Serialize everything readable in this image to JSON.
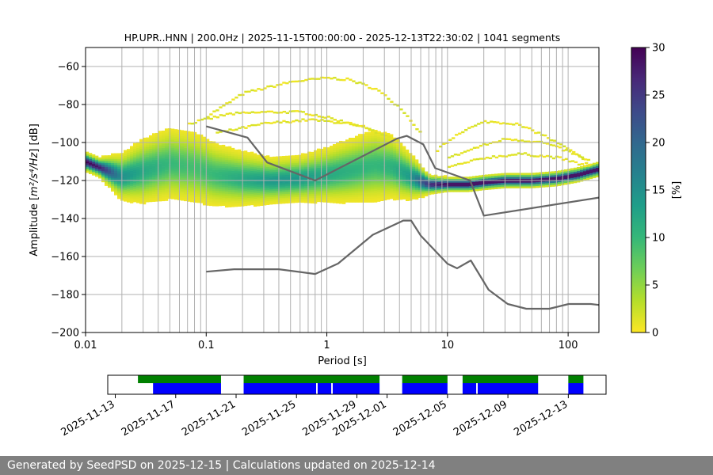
{
  "chart_data": [
    {
      "type": "heatmap",
      "subtype": "probabilistic-power-spectral-density",
      "title": "HP.UPR..HNN | 200.0Hz | 2025-11-15T00:00:00 - 2025-12-13T22:30:02 | 1041 segments",
      "xlabel": "Period [s]",
      "ylabel_text": "Amplitude [",
      "ylabel_unit": "m²/s⁴/Hz",
      "ylabel_tail": "] [dB]",
      "x_scale": "log",
      "xlim": [
        0.01,
        180
      ],
      "ylim": [
        -200,
        -50
      ],
      "x_ticks": [
        {
          "value": 0.01,
          "label": "0.01"
        },
        {
          "value": 0.1,
          "label": "0.1"
        },
        {
          "value": 1,
          "label": "1"
        },
        {
          "value": 10,
          "label": "10"
        },
        {
          "value": 100,
          "label": "100"
        }
      ],
      "y_ticks": [
        {
          "value": -60,
          "label": "−60"
        },
        {
          "value": -80,
          "label": "−80"
        },
        {
          "value": -100,
          "label": "−100"
        },
        {
          "value": -120,
          "label": "−120"
        },
        {
          "value": -140,
          "label": "−140"
        },
        {
          "value": -160,
          "label": "−160"
        },
        {
          "value": -180,
          "label": "−180"
        },
        {
          "value": -200,
          "label": "−200"
        }
      ],
      "grid": true,
      "colorbar": {
        "label": "[%]",
        "range": [
          0,
          30
        ],
        "ticks": [
          {
            "value": 0,
            "label": "0"
          },
          {
            "value": 5,
            "label": "5"
          },
          {
            "value": 10,
            "label": "10"
          },
          {
            "value": 15,
            "label": "15"
          },
          {
            "value": 20,
            "label": "20"
          },
          {
            "value": 25,
            "label": "25"
          },
          {
            "value": 30,
            "label": "30"
          }
        ],
        "colormap_stops": [
          "#fde725",
          "#b5de2b",
          "#6ece58",
          "#35b779",
          "#1f9e89",
          "#26828e",
          "#31688e",
          "#3e4989",
          "#482878",
          "#440154"
        ]
      },
      "series": [
        {
          "name": "new-high-noise-model",
          "color": "#666666",
          "x": [
            0.1,
            0.22,
            0.32,
            0.8,
            3.8,
            4.6,
            6.3,
            7.9,
            15.4,
            20,
            180
          ],
          "y": [
            -91.5,
            -97.4,
            -110.5,
            -120,
            -98,
            -96.5,
            -101,
            -113.5,
            -120,
            -138.5,
            -129
          ]
        },
        {
          "name": "new-low-noise-model",
          "color": "#666666",
          "x": [
            0.1,
            0.17,
            0.4,
            0.8,
            1.24,
            2.4,
            4.3,
            5.0,
            6.0,
            10,
            12,
            15.6,
            21.9,
            31.6,
            45,
            70,
            101,
            154,
            180
          ],
          "y": [
            -168,
            -166.7,
            -166.7,
            -169.2,
            -163.7,
            -148.6,
            -141.1,
            -141.1,
            -149,
            -163.8,
            -166.2,
            -162.1,
            -177.5,
            -185,
            -187.5,
            -187.5,
            -185,
            -185,
            -185.5
          ]
        }
      ],
      "density_band": {
        "description": "PPSD probability density (% occurrence), mode curve with spread",
        "mode_x": [
          0.01,
          0.013,
          0.02,
          0.03,
          0.05,
          0.08,
          0.12,
          0.2,
          0.35,
          0.6,
          1.0,
          1.5,
          2.5,
          3.5,
          5,
          7,
          10,
          15,
          20,
          30,
          50,
          80,
          120,
          180
        ],
        "mode_y": [
          -110,
          -113,
          -118,
          -115,
          -111,
          -113,
          -117,
          -119,
          -120,
          -119,
          -117,
          -115,
          -112,
          -113,
          -118,
          -122,
          -122,
          -122,
          -121,
          -120,
          -120,
          -119,
          -117,
          -114
        ],
        "peak_percent": [
          30,
          28,
          15,
          12,
          10,
          9,
          10,
          12,
          14,
          14,
          12,
          11,
          10,
          11,
          14,
          26,
          30,
          30,
          30,
          30,
          30,
          30,
          30,
          30
        ],
        "spread_db": [
          2,
          2,
          5,
          7,
          8,
          8,
          7,
          6,
          5,
          5,
          6,
          7,
          8,
          7,
          5,
          2,
          1.5,
          1.5,
          1.5,
          1.5,
          1.5,
          1.5,
          1.5,
          1.5
        ]
      },
      "sparse_outliers": {
        "description": "low-probability upper arcs",
        "arcs": [
          {
            "x": [
              0.1,
              0.2,
              0.5,
              1.0,
              1.5,
              2.5,
              4,
              6
            ],
            "y": [
              -86,
              -74,
              -68,
              -66,
              -67,
              -72,
              -82,
              -96
            ]
          },
          {
            "x": [
              0.07,
              0.15,
              0.3,
              0.6,
              1.0,
              2.0,
              4
            ],
            "y": [
              -90,
              -85,
              -84,
              -84,
              -87,
              -92,
              -100
            ]
          },
          {
            "x": [
              0.12,
              0.3,
              0.7,
              1.5,
              3
            ],
            "y": [
              -95,
              -90,
              -88,
              -90,
              -96
            ]
          },
          {
            "x": [
              8,
              12,
              20,
              35,
              60,
              100,
              150
            ],
            "y": [
              -104,
              -95,
              -89,
              -90,
              -96,
              -104,
              -112
            ]
          },
          {
            "x": [
              10,
              18,
              30,
              60,
              100,
              150
            ],
            "y": [
              -108,
              -102,
              -98,
              -100,
              -105,
              -110
            ]
          },
          {
            "x": [
              10,
              20,
              40,
              80,
              150
            ],
            "y": [
              -113,
              -108,
              -106,
              -108,
              -113
            ]
          }
        ]
      }
    },
    {
      "type": "timeline",
      "x_ticks": [
        {
          "value": "2025-11-13",
          "label": "2025-11-13"
        },
        {
          "value": "2025-11-17",
          "label": "2025-11-17"
        },
        {
          "value": "2025-11-21",
          "label": "2025-11-21"
        },
        {
          "value": "2025-11-25",
          "label": "2025-11-25"
        },
        {
          "value": "2025-11-29",
          "label": "2025-11-29"
        },
        {
          "value": "2025-12-01",
          "label": "2025-12-01"
        },
        {
          "value": "2025-12-05",
          "label": "2025-12-05"
        },
        {
          "value": "2025-12-09",
          "label": "2025-12-09"
        },
        {
          "value": "2025-12-13",
          "label": "2025-12-13"
        }
      ],
      "xlim_days": [
        -0.5,
        32.5
      ],
      "origin_date": "2025-11-13",
      "green_color": "#008000",
      "blue_color": "#0000ff",
      "green_segments": [
        [
          1.5,
          7.0
        ],
        [
          8.5,
          17.5
        ],
        [
          19.0,
          22.0
        ],
        [
          23.0,
          28.0
        ],
        [
          30.0,
          31.0
        ]
      ],
      "blue_segments": [
        [
          2.5,
          7.0
        ],
        [
          8.5,
          13.3
        ],
        [
          13.4,
          14.3
        ],
        [
          14.4,
          17.5
        ],
        [
          19.0,
          22.0
        ],
        [
          23.0,
          23.9
        ],
        [
          24.0,
          28.0
        ],
        [
          30.0,
          31.0
        ]
      ]
    }
  ],
  "footer": {
    "text": "Generated by SeedPSD on 2025-12-15 | Calculations updated on 2025-12-14"
  }
}
